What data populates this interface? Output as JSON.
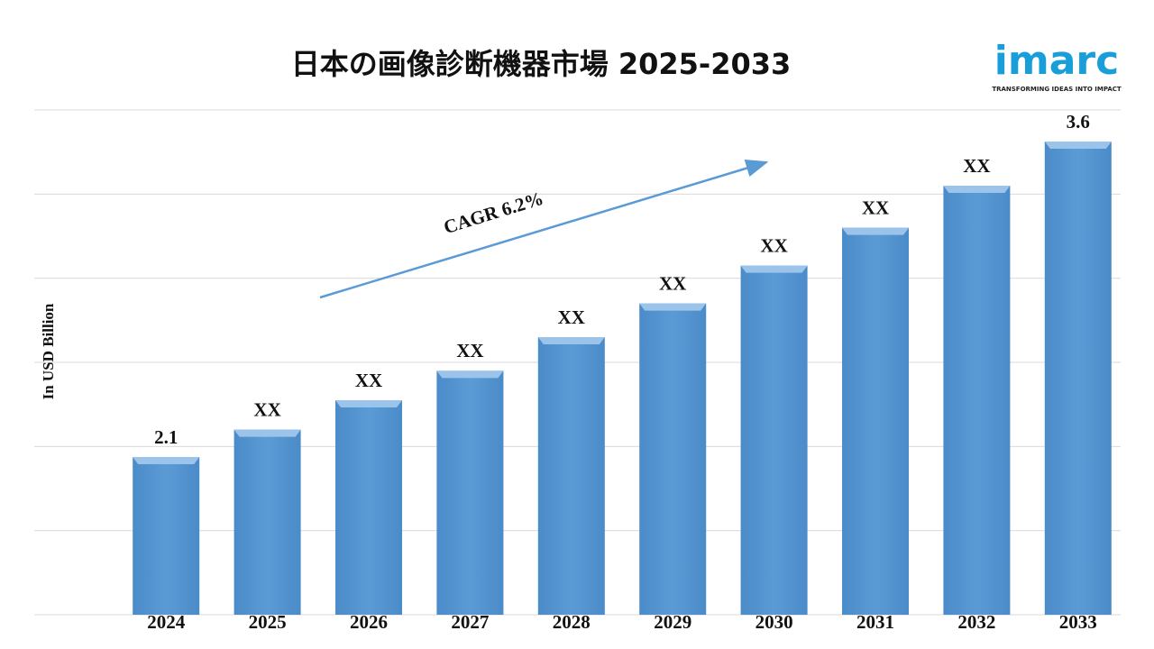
{
  "chart_data": {
    "type": "bar",
    "title": "日本の画像診断機器市場 2025-2033",
    "y_axis_label": "In USD Billion",
    "annotation": "CAGR 6.2%",
    "logo": "imarc",
    "logo_tagline": "TRANSFORMING IDEAS INTO IMPACT",
    "categories": [
      "2024",
      "2025",
      "2026",
      "2027",
      "2028",
      "2029",
      "2030",
      "2031",
      "2032",
      "2033"
    ],
    "values": [
      2.1,
      2.23,
      2.37,
      2.51,
      2.67,
      2.83,
      3.01,
      3.19,
      3.39,
      3.6
    ],
    "value_labels": [
      "2.1",
      "XX",
      "XX",
      "XX",
      "XX",
      "XX",
      "XX",
      "XX",
      "XX",
      "3.6"
    ],
    "color": "#5b9bd5",
    "ylim": [
      1.35,
      3.75
    ],
    "yticks": [
      1.35,
      1.75,
      2.15,
      2.55,
      2.95,
      3.35,
      3.75
    ],
    "grid": true
  }
}
